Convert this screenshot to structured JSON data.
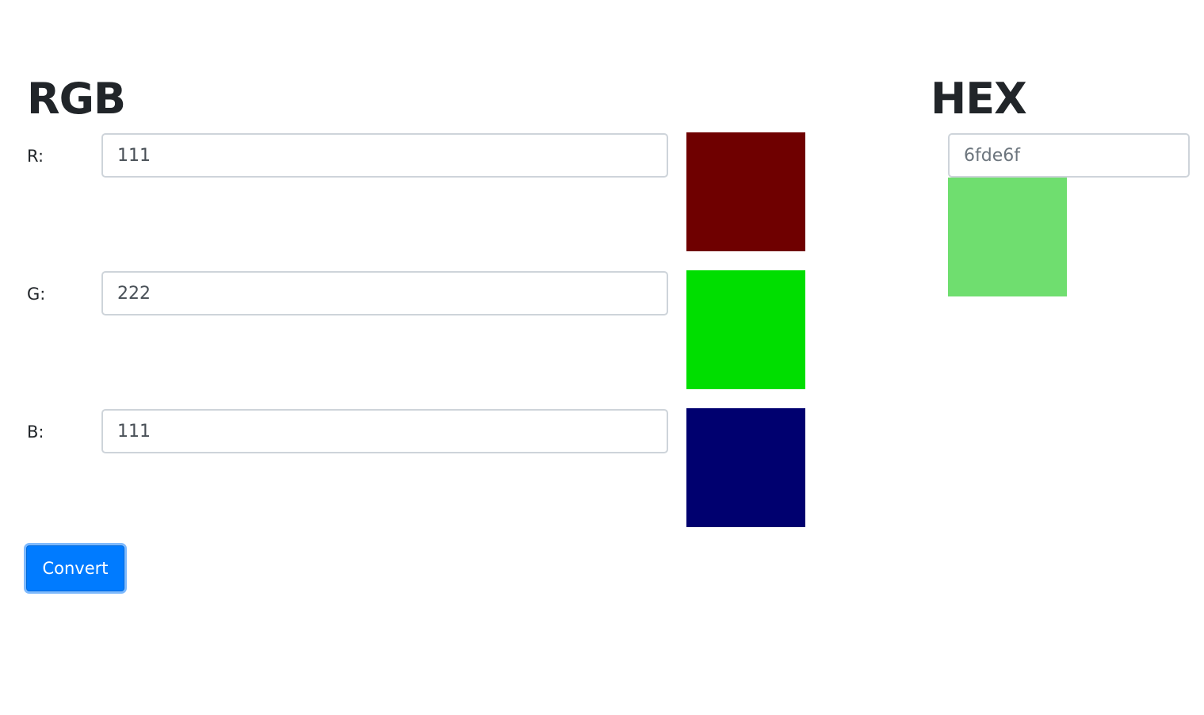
{
  "rgb": {
    "heading": "RGB",
    "channels": [
      {
        "label": "R:",
        "value": "111",
        "swatch_color": "#6f0000"
      },
      {
        "label": "G:",
        "value": "222",
        "swatch_color": "#00de00"
      },
      {
        "label": "B:",
        "value": "111",
        "swatch_color": "#00006f"
      }
    ],
    "convert_label": "Convert"
  },
  "hex": {
    "heading": "HEX",
    "placeholder": "6fde6f",
    "value": "",
    "swatch_color": "#6fde6f"
  },
  "colors": {
    "button_primary": "#007bff",
    "button_focus_ring": "#7fbafd",
    "input_border": "#ced4da",
    "text": "#212529"
  }
}
